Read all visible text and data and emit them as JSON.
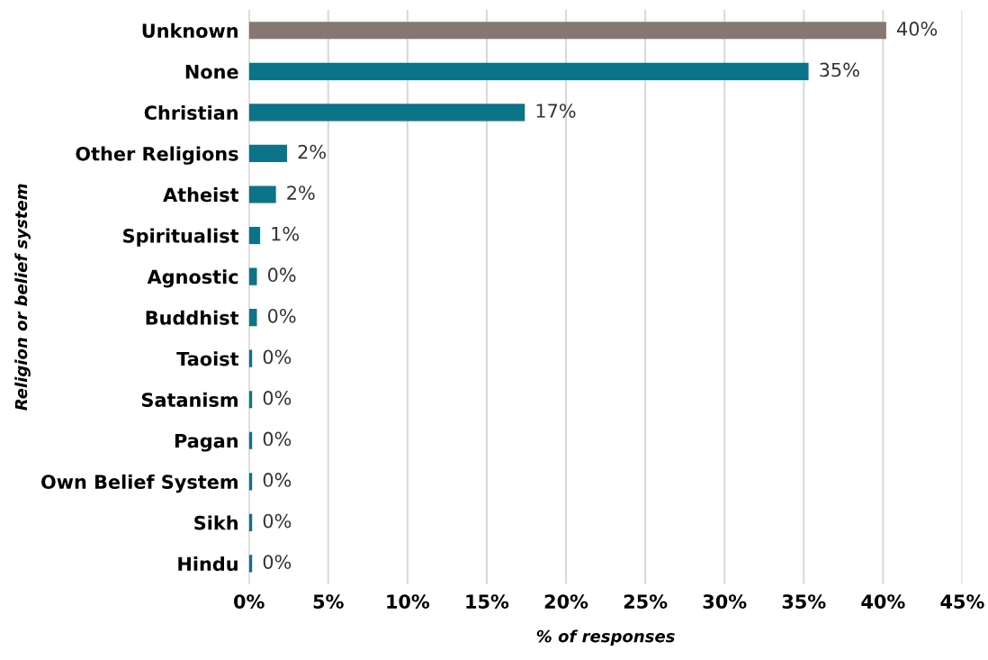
{
  "chart_data": {
    "type": "bar",
    "orientation": "horizontal",
    "categories": [
      "Unknown",
      "None",
      "Christian",
      "Other Religions",
      "Atheist",
      "Spiritualist",
      "Agnostic",
      "Buddhist",
      "Taoist",
      "Satanism",
      "Pagan",
      "Own Belief System",
      "Sikh",
      "Hindu"
    ],
    "values": [
      40.2,
      35.3,
      17.4,
      2.4,
      1.7,
      0.7,
      0.5,
      0.5,
      0.2,
      0.2,
      0.2,
      0.2,
      0.2,
      0.2
    ],
    "colors": [
      "#857872",
      "#0b7489",
      "#0b7489",
      "#0b7489",
      "#0b7489",
      "#0b7489",
      "#0b7489",
      "#0b7489",
      "#0b7489",
      "#0b7489",
      "#0b7489",
      "#0b7489",
      "#0b7489",
      "#0b7489"
    ],
    "value_labels": [
      "40%",
      "35%",
      "17%",
      "2%",
      "2%",
      "1%",
      "0%",
      "0%",
      "0%",
      "0%",
      "0%",
      "0%",
      "0%",
      "0%"
    ],
    "xlim": [
      0,
      45
    ],
    "xticks": [
      {
        "value": 0,
        "label": "0%"
      },
      {
        "value": 5,
        "label": "5%"
      },
      {
        "value": 10,
        "label": "10%"
      },
      {
        "value": 15,
        "label": "15%"
      },
      {
        "value": 20,
        "label": "20%"
      },
      {
        "value": 25,
        "label": "25%"
      },
      {
        "value": 30,
        "label": "30%"
      },
      {
        "value": 35,
        "label": "35%"
      },
      {
        "value": 40,
        "label": "40%"
      },
      {
        "value": 45,
        "label": "45%"
      }
    ],
    "xlabel": "% of responses",
    "ylabel": "Religion or belief system",
    "grid": "x"
  }
}
